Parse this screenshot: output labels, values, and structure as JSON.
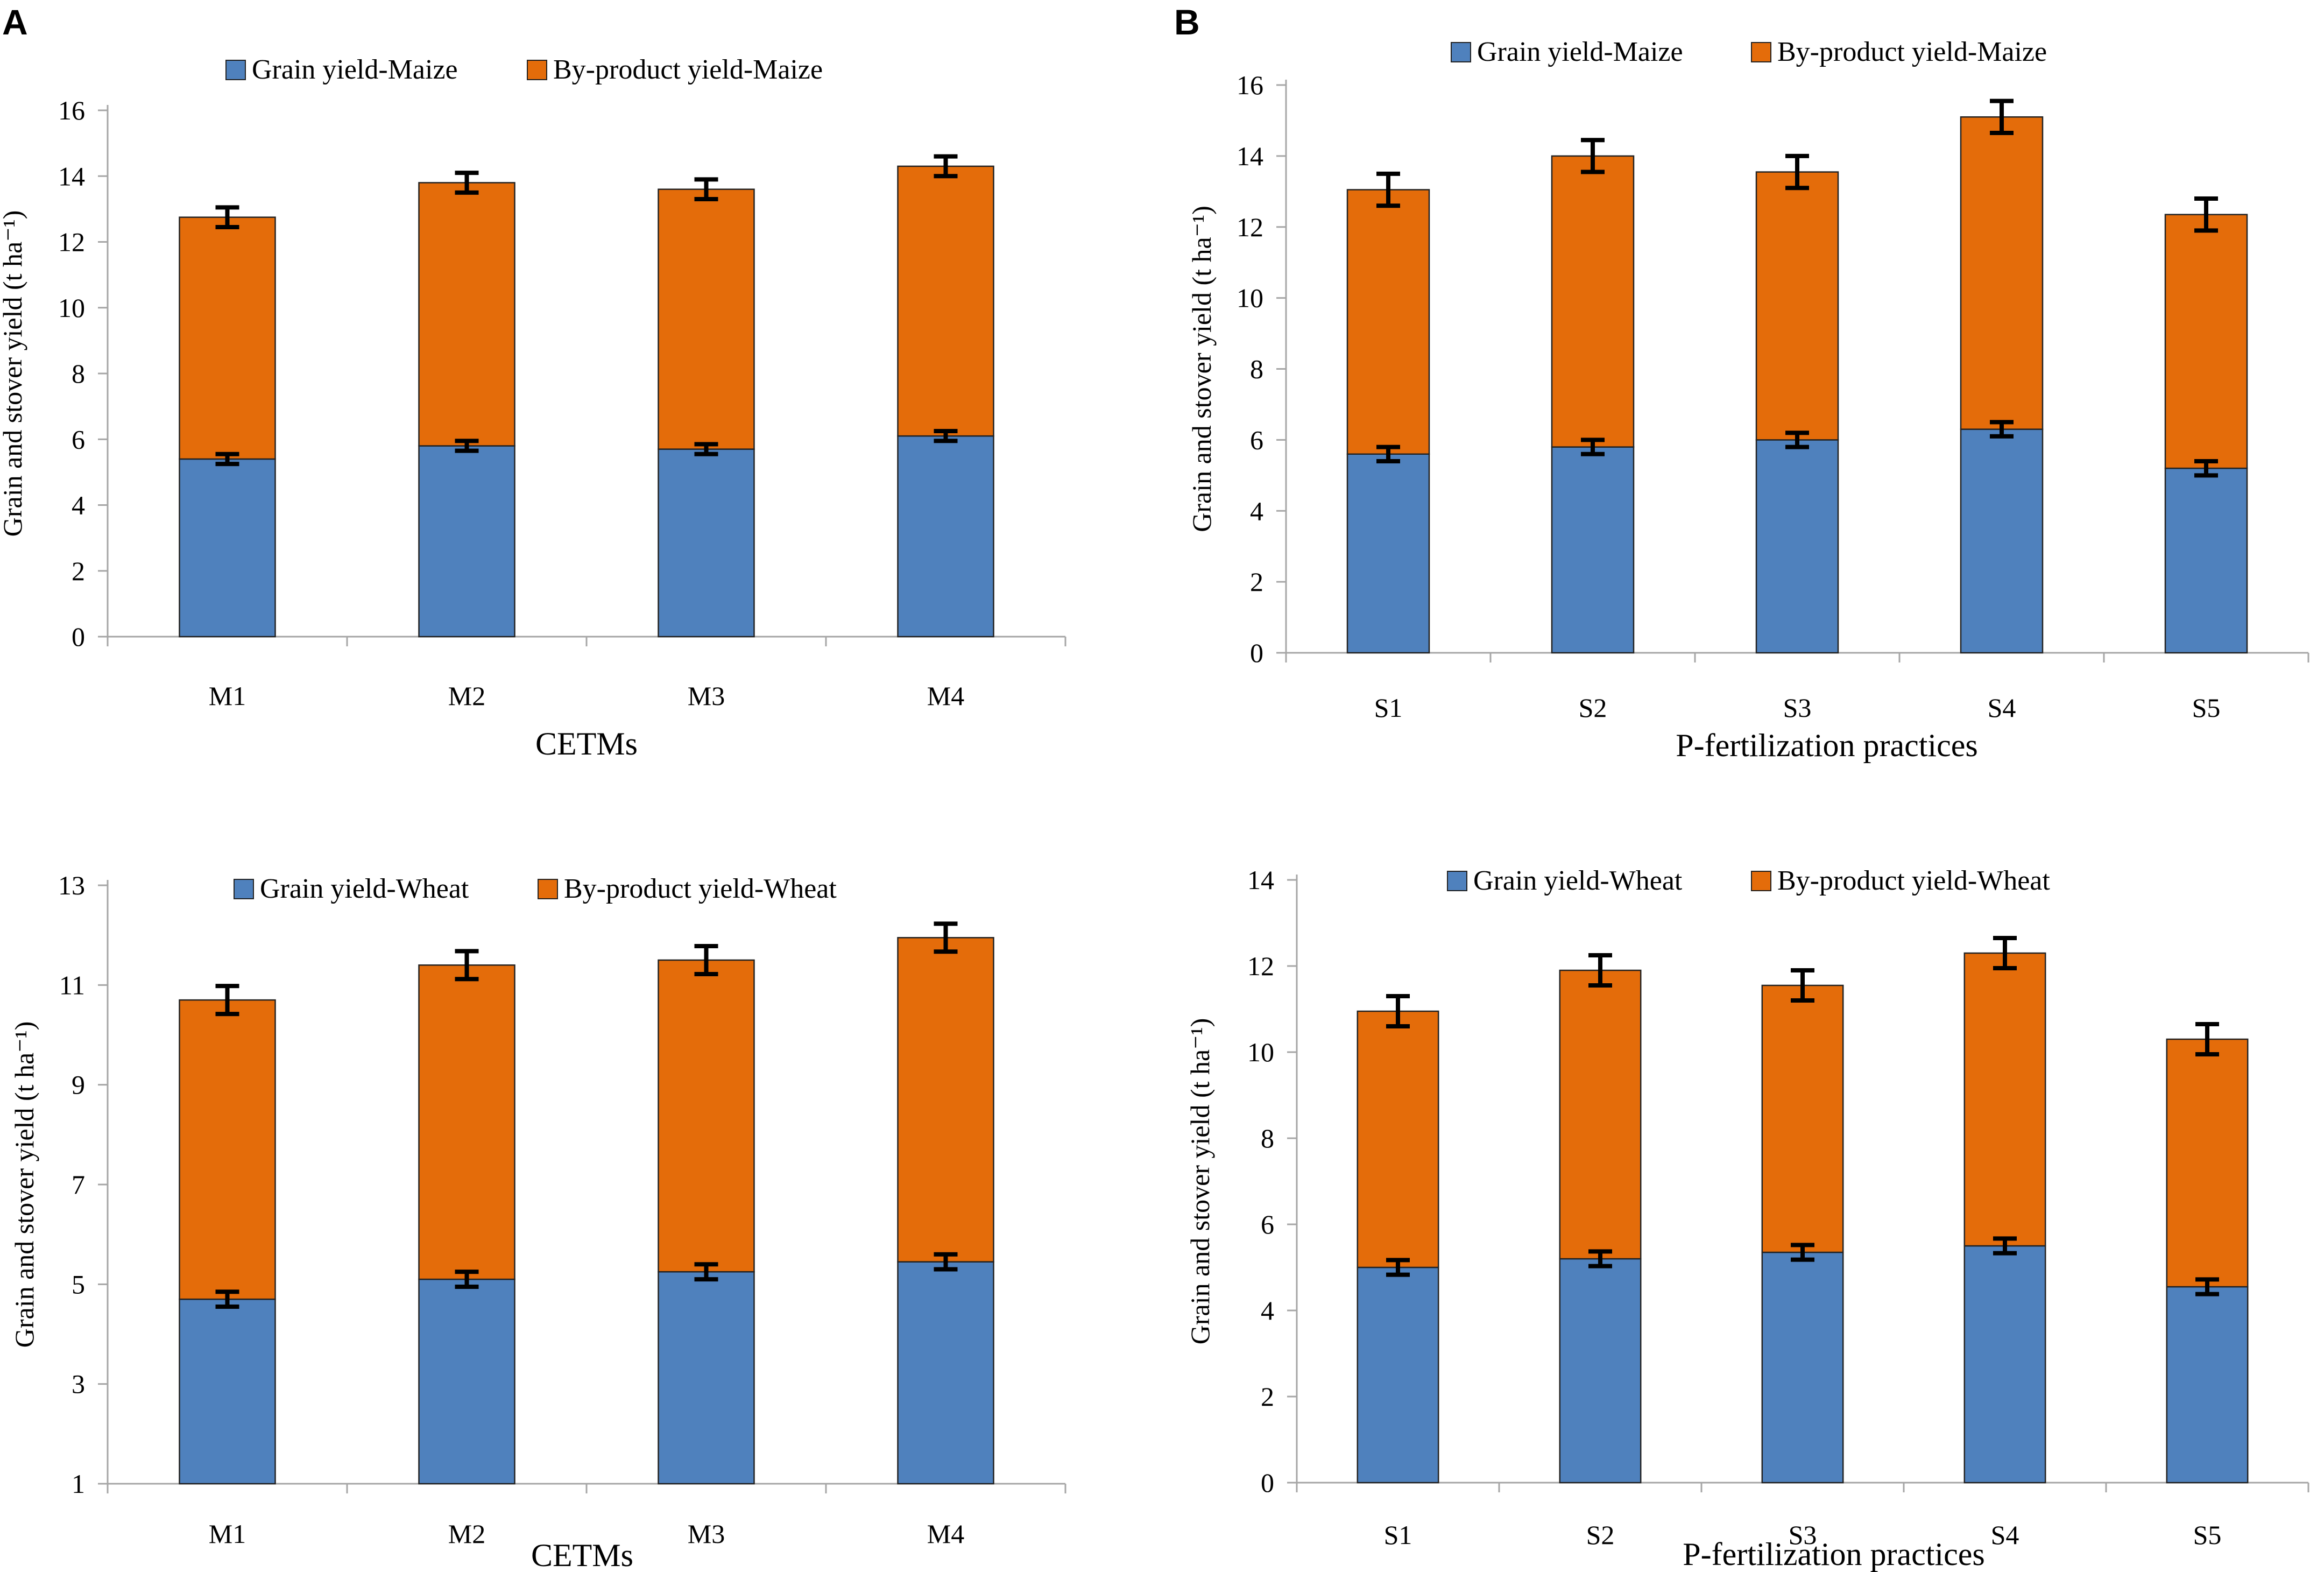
{
  "colors": {
    "grain": "#4f81bd",
    "byproduct": "#e46c0a"
  },
  "panels": [
    {
      "letter": "A"
    },
    {
      "letter": "B"
    }
  ],
  "chart_data": [
    {
      "id": "maize-cetm",
      "type": "bar",
      "stacked": true,
      "panel_letter": "A",
      "title": "",
      "xlabel": "CETMs",
      "ylabel": "Grain and stover yield (t ha⁻¹)",
      "ylim": [
        0,
        16
      ],
      "yticks": [
        0,
        2,
        4,
        6,
        8,
        10,
        12,
        14,
        16
      ],
      "categories": [
        "M1",
        "M2",
        "M3",
        "M4"
      ],
      "series": [
        {
          "name": "Grain yield-Maize",
          "color_key": "grain",
          "values": [
            5.4,
            5.8,
            5.7,
            6.1
          ],
          "error": [
            0.15,
            0.15,
            0.15,
            0.15
          ]
        },
        {
          "name": "By-product yield-Maize",
          "color_key": "byproduct",
          "values": [
            7.35,
            8.0,
            7.9,
            8.2
          ],
          "error": [
            0.3,
            0.3,
            0.3,
            0.3
          ]
        }
      ],
      "legend": "top"
    },
    {
      "id": "maize-p",
      "type": "bar",
      "stacked": true,
      "panel_letter": "B",
      "title": "",
      "xlabel": "P-fertilization practices",
      "ylabel": "Grain and stover yield (t ha⁻¹)",
      "ylim": [
        0,
        16
      ],
      "yticks": [
        0,
        2,
        4,
        6,
        8,
        10,
        12,
        14,
        16
      ],
      "categories": [
        "S1",
        "S2",
        "S3",
        "S4",
        "S5"
      ],
      "series": [
        {
          "name": "Grain yield-Maize",
          "color_key": "grain",
          "values": [
            5.6,
            5.8,
            6.0,
            6.3,
            5.2
          ],
          "error": [
            0.2,
            0.2,
            0.2,
            0.2,
            0.2
          ]
        },
        {
          "name": "By-product yield-Maize",
          "color_key": "byproduct",
          "values": [
            7.45,
            8.2,
            7.55,
            8.8,
            7.15
          ],
          "error": [
            0.45,
            0.45,
            0.45,
            0.45,
            0.45
          ]
        }
      ],
      "legend": "top"
    },
    {
      "id": "wheat-cetm",
      "type": "bar",
      "stacked": true,
      "title": "",
      "xlabel": "CETMs",
      "ylabel": "Grain and stover yield (t ha⁻¹)",
      "ylim": [
        1,
        13
      ],
      "yticks": [
        1,
        3,
        5,
        7,
        9,
        11,
        13
      ],
      "categories": [
        "M1",
        "M2",
        "M3",
        "M4"
      ],
      "series": [
        {
          "name": "Grain yield-Wheat",
          "color_key": "grain",
          "values": [
            4.7,
            5.1,
            5.25,
            5.45
          ],
          "error": [
            0.15,
            0.15,
            0.15,
            0.15
          ]
        },
        {
          "name": "By-product yield-Wheat",
          "color_key": "byproduct",
          "values": [
            6.0,
            6.3,
            6.25,
            6.5
          ],
          "error": [
            0.28,
            0.28,
            0.28,
            0.28
          ]
        }
      ],
      "legend": "top"
    },
    {
      "id": "wheat-p",
      "type": "bar",
      "stacked": true,
      "title": "",
      "xlabel": "P-fertilization practices",
      "ylabel": "Grain and stover yield (t ha⁻¹)",
      "ylim": [
        0,
        14
      ],
      "yticks": [
        0,
        2,
        4,
        6,
        8,
        10,
        12,
        14
      ],
      "categories": [
        "S1",
        "S2",
        "S3",
        "S4",
        "S5"
      ],
      "series": [
        {
          "name": "Grain yield-Wheat",
          "color_key": "grain",
          "values": [
            5.0,
            5.2,
            5.35,
            5.5,
            4.55
          ],
          "error": [
            0.17,
            0.17,
            0.17,
            0.17,
            0.17
          ]
        },
        {
          "name": "By-product yield-Wheat",
          "color_key": "byproduct",
          "values": [
            5.95,
            6.7,
            6.2,
            6.8,
            5.75
          ],
          "error": [
            0.35,
            0.35,
            0.35,
            0.35,
            0.35
          ]
        }
      ],
      "legend": "top"
    }
  ]
}
